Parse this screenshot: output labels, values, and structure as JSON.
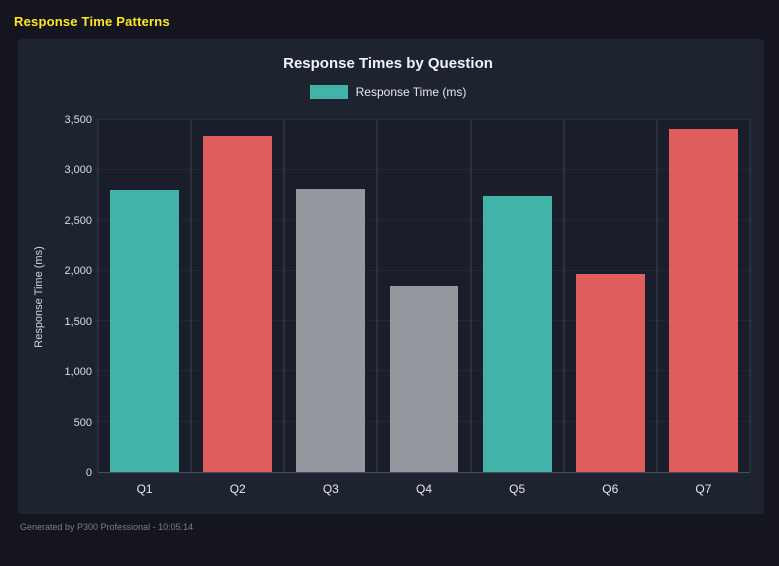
{
  "page": {
    "title": "Response Time Patterns",
    "title_color": "#ffe81e",
    "footer": "Generated by P300 Professional - 10:05:14"
  },
  "colors": {
    "teal": "#42b3a8",
    "red": "#e05e5e",
    "gray": "#9698a0",
    "panel_bg": "#1e2330",
    "page_bg": "#14151f"
  },
  "chart_data": {
    "type": "bar",
    "title": "Response Times by Question",
    "legend": [
      {
        "label": "Response Time (ms)",
        "color": "#42b3a8"
      }
    ],
    "legend_position": "top",
    "categories": [
      "Q1",
      "Q2",
      "Q3",
      "Q4",
      "Q5",
      "Q6",
      "Q7"
    ],
    "values": [
      2800,
      3340,
      2810,
      1850,
      2740,
      1970,
      3410
    ],
    "bar_colors": [
      "#42b3a8",
      "#e05e5e",
      "#9698a0",
      "#9698a0",
      "#42b3a8",
      "#e05e5e",
      "#e05e5e"
    ],
    "xlabel": "",
    "ylabel": "Response Time (ms)",
    "ylim": [
      0,
      3500
    ],
    "ytick_step": 500,
    "ytick_labels": [
      "0",
      "500",
      "1,000",
      "1,500",
      "2,000",
      "2,500",
      "3,000",
      "3,500"
    ],
    "grid": "vertical"
  }
}
